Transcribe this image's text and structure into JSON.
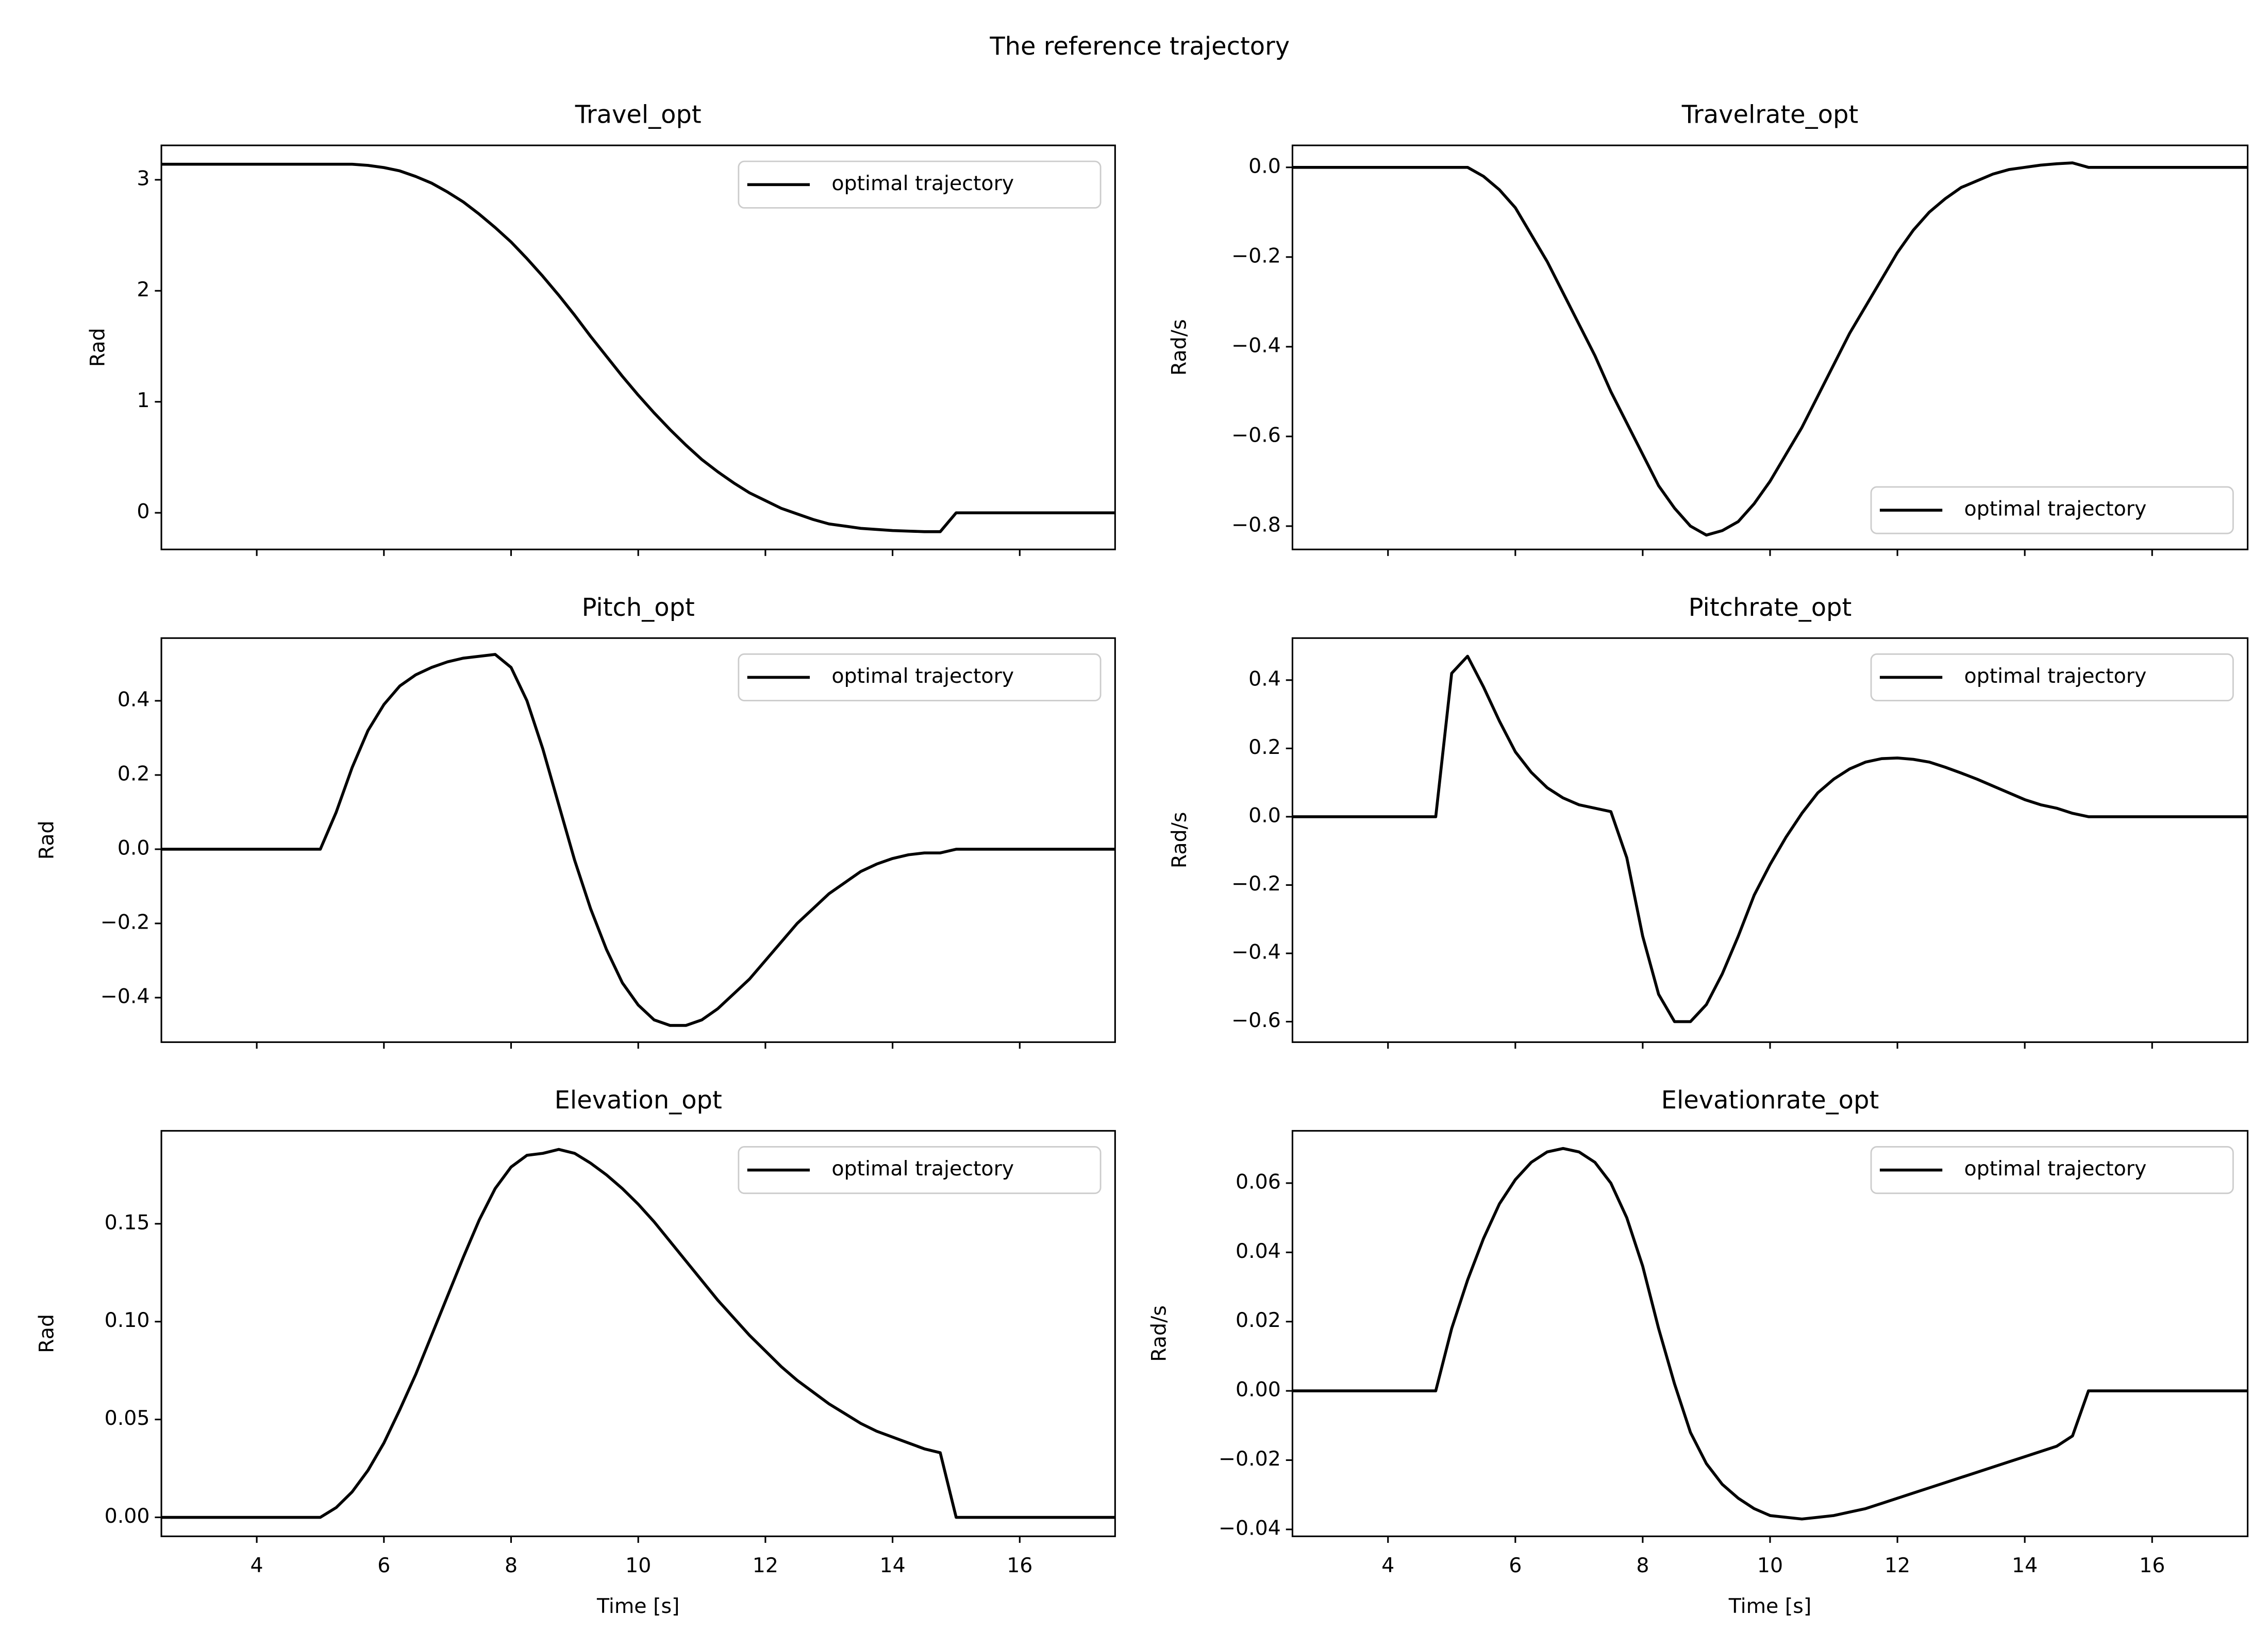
{
  "title": "The reference trajectory",
  "chart_data": [
    {
      "type": "line",
      "title": "Travel_opt",
      "ylabel": "Rad",
      "x": [
        2.5,
        4.5,
        4.75,
        5,
        5.25,
        5.5,
        5.75,
        6,
        6.25,
        6.5,
        6.75,
        7,
        7.25,
        7.5,
        7.75,
        8,
        8.25,
        8.5,
        8.75,
        9,
        9.25,
        9.5,
        9.75,
        10,
        10.25,
        10.5,
        10.75,
        11,
        11.25,
        11.5,
        11.75,
        12,
        12.25,
        12.5,
        12.75,
        13,
        13.25,
        13.5,
        13.75,
        14,
        14.25,
        14.5,
        14.75,
        15,
        15.25,
        15.5,
        17.5
      ],
      "series": [
        {
          "name": "optimal trajectory",
          "color": "#000000",
          "values": [
            3.14,
            3.14,
            3.14,
            3.14,
            3.14,
            3.14,
            3.13,
            3.11,
            3.08,
            3.03,
            2.97,
            2.89,
            2.8,
            2.69,
            2.57,
            2.44,
            2.29,
            2.13,
            1.96,
            1.78,
            1.59,
            1.41,
            1.23,
            1.06,
            0.9,
            0.75,
            0.61,
            0.48,
            0.37,
            0.27,
            0.18,
            0.11,
            0.04,
            -0.01,
            -0.06,
            -0.1,
            -0.12,
            -0.14,
            -0.15,
            -0.16,
            -0.165,
            -0.17,
            -0.17,
            0,
            0,
            0,
            0
          ]
        }
      ],
      "xlim": [
        2.5,
        17.5
      ],
      "ylim": [
        -0.33,
        3.31
      ],
      "xticks": [
        4,
        6,
        8,
        10,
        12,
        14,
        16
      ],
      "xtick_labels": false,
      "yticks": [
        0,
        1,
        2,
        3
      ],
      "legend": "upper right"
    },
    {
      "type": "line",
      "title": "Travelrate_opt",
      "ylabel": "Rad/s",
      "x": [
        2.5,
        4.5,
        4.75,
        5,
        5.25,
        5.5,
        5.75,
        6,
        6.25,
        6.5,
        6.75,
        7,
        7.25,
        7.5,
        7.75,
        8,
        8.25,
        8.5,
        8.75,
        9,
        9.25,
        9.5,
        9.75,
        10,
        10.25,
        10.5,
        10.75,
        11,
        11.25,
        11.5,
        11.75,
        12,
        12.25,
        12.5,
        12.75,
        13,
        13.25,
        13.5,
        13.75,
        14,
        14.25,
        14.5,
        14.75,
        15,
        15.25,
        15.5,
        17.5
      ],
      "series": [
        {
          "name": "optimal trajectory",
          "color": "#000000",
          "values": [
            0,
            0,
            0,
            0,
            0,
            -0.02,
            -0.05,
            -0.09,
            -0.15,
            -0.21,
            -0.28,
            -0.35,
            -0.42,
            -0.5,
            -0.57,
            -0.64,
            -0.71,
            -0.76,
            -0.8,
            -0.82,
            -0.81,
            -0.79,
            -0.75,
            -0.7,
            -0.64,
            -0.58,
            -0.51,
            -0.44,
            -0.37,
            -0.31,
            -0.25,
            -0.19,
            -0.14,
            -0.1,
            -0.07,
            -0.045,
            -0.03,
            -0.015,
            -0.005,
            0,
            0.005,
            0.008,
            0.01,
            0,
            0,
            0,
            0
          ]
        }
      ],
      "xlim": [
        2.5,
        17.5
      ],
      "ylim": [
        -0.852,
        0.049
      ],
      "xticks": [
        4,
        6,
        8,
        10,
        12,
        14,
        16
      ],
      "xtick_labels": false,
      "yticks": [
        {
          "value": -0.8,
          "label": "−0.8"
        },
        {
          "value": -0.6,
          "label": "−0.6"
        },
        {
          "value": -0.4,
          "label": "−0.4"
        },
        {
          "value": -0.2,
          "label": "−0.2"
        },
        {
          "value": 0,
          "label": "0.0"
        }
      ],
      "legend": "lower right"
    },
    {
      "type": "line",
      "title": "Pitch_opt",
      "ylabel": "Rad",
      "x": [
        2.5,
        4.5,
        4.75,
        5,
        5.25,
        5.5,
        5.75,
        6,
        6.25,
        6.5,
        6.75,
        7,
        7.25,
        7.5,
        7.75,
        8,
        8.25,
        8.5,
        8.75,
        9,
        9.25,
        9.5,
        9.75,
        10,
        10.25,
        10.5,
        10.75,
        11,
        11.25,
        11.5,
        11.75,
        12,
        12.25,
        12.5,
        12.75,
        13,
        13.25,
        13.5,
        13.75,
        14,
        14.25,
        14.5,
        14.75,
        15,
        15.25,
        15.5,
        17.5
      ],
      "series": [
        {
          "name": "optimal trajectory",
          "color": "#000000",
          "values": [
            0,
            0,
            0,
            0,
            0.1,
            0.22,
            0.32,
            0.39,
            0.44,
            0.47,
            0.49,
            0.505,
            0.515,
            0.52,
            0.525,
            0.49,
            0.4,
            0.27,
            0.12,
            -0.03,
            -0.16,
            -0.27,
            -0.36,
            -0.42,
            -0.46,
            -0.475,
            -0.475,
            -0.46,
            -0.43,
            -0.39,
            -0.35,
            -0.3,
            -0.25,
            -0.2,
            -0.16,
            -0.12,
            -0.09,
            -0.06,
            -0.04,
            -0.025,
            -0.015,
            -0.01,
            -0.01,
            0,
            0,
            0,
            0
          ]
        }
      ],
      "xlim": [
        2.5,
        17.5
      ],
      "ylim": [
        -0.52,
        0.569
      ],
      "xticks": [
        4,
        6,
        8,
        10,
        12,
        14,
        16
      ],
      "xtick_labels": false,
      "yticks": [
        {
          "value": -0.4,
          "label": "−0.4"
        },
        {
          "value": -0.2,
          "label": "−0.2"
        },
        {
          "value": 0,
          "label": "0.0"
        },
        {
          "value": 0.2,
          "label": "0.2"
        },
        {
          "value": 0.4,
          "label": "0.4"
        }
      ],
      "legend": "upper right"
    },
    {
      "type": "line",
      "title": "Pitchrate_opt",
      "ylabel": "Rad/s",
      "x": [
        2.5,
        4.5,
        4.75,
        5,
        5.25,
        5.5,
        5.75,
        6,
        6.25,
        6.5,
        6.75,
        7,
        7.25,
        7.5,
        7.75,
        8,
        8.25,
        8.5,
        8.75,
        9,
        9.25,
        9.5,
        9.75,
        10,
        10.25,
        10.5,
        10.75,
        11,
        11.25,
        11.5,
        11.75,
        12,
        12.25,
        12.5,
        12.75,
        13,
        13.25,
        13.5,
        13.75,
        14,
        14.25,
        14.5,
        14.75,
        15,
        15.25,
        15.5,
        17.5
      ],
      "series": [
        {
          "name": "optimal trajectory",
          "color": "#000000",
          "values": [
            0,
            0,
            0,
            0.42,
            0.47,
            0.38,
            0.28,
            0.19,
            0.13,
            0.085,
            0.055,
            0.035,
            0.025,
            0.015,
            -0.12,
            -0.35,
            -0.52,
            -0.6,
            -0.6,
            -0.55,
            -0.46,
            -0.35,
            -0.23,
            -0.14,
            -0.06,
            0.01,
            0.07,
            0.11,
            0.14,
            0.16,
            0.17,
            0.172,
            0.168,
            0.16,
            0.145,
            0.128,
            0.11,
            0.09,
            0.07,
            0.05,
            0.035,
            0.025,
            0.01,
            0,
            0,
            0,
            0
          ]
        }
      ],
      "xlim": [
        2.5,
        17.5
      ],
      "ylim": [
        -0.66,
        0.523
      ],
      "xticks": [
        4,
        6,
        8,
        10,
        12,
        14,
        16
      ],
      "xtick_labels": false,
      "yticks": [
        {
          "value": -0.6,
          "label": "−0.6"
        },
        {
          "value": -0.4,
          "label": "−0.4"
        },
        {
          "value": -0.2,
          "label": "−0.2"
        },
        {
          "value": 0,
          "label": "0.0"
        },
        {
          "value": 0.2,
          "label": "0.2"
        },
        {
          "value": 0.4,
          "label": "0.4"
        }
      ],
      "legend": "upper right"
    },
    {
      "type": "line",
      "title": "Elevation_opt",
      "xlabel": "Time [s]",
      "ylabel": "Rad",
      "x": [
        2.5,
        4.5,
        4.75,
        5,
        5.25,
        5.5,
        5.75,
        6,
        6.25,
        6.5,
        6.75,
        7,
        7.25,
        7.5,
        7.75,
        8,
        8.25,
        8.5,
        8.75,
        9,
        9.25,
        9.5,
        9.75,
        10,
        10.25,
        10.5,
        10.75,
        11,
        11.25,
        11.5,
        11.75,
        12,
        12.25,
        12.5,
        12.75,
        13,
        13.25,
        13.5,
        13.75,
        14,
        14.25,
        14.5,
        14.75,
        15,
        15.25,
        15.5,
        17.5
      ],
      "series": [
        {
          "name": "optimal trajectory",
          "color": "#000000",
          "values": [
            0,
            0,
            0,
            0,
            0.005,
            0.013,
            0.024,
            0.038,
            0.055,
            0.073,
            0.093,
            0.113,
            0.133,
            0.152,
            0.168,
            0.179,
            0.185,
            0.186,
            0.188,
            0.186,
            0.181,
            0.175,
            0.168,
            0.16,
            0.151,
            0.141,
            0.131,
            0.121,
            0.111,
            0.102,
            0.093,
            0.085,
            0.077,
            0.07,
            0.064,
            0.058,
            0.053,
            0.048,
            0.044,
            0.041,
            0.038,
            0.035,
            0.033,
            0,
            0,
            0,
            0
          ]
        }
      ],
      "xlim": [
        2.5,
        17.5
      ],
      "ylim": [
        -0.0097,
        0.1975
      ],
      "xticks": [
        4,
        6,
        8,
        10,
        12,
        14,
        16
      ],
      "xtick_labels": true,
      "yticks": [
        {
          "value": 0,
          "label": "0.00"
        },
        {
          "value": 0.05,
          "label": "0.05"
        },
        {
          "value": 0.1,
          "label": "0.10"
        },
        {
          "value": 0.15,
          "label": "0.15"
        }
      ],
      "legend": "upper right"
    },
    {
      "type": "line",
      "title": "Elevationrate_opt",
      "xlabel": "Time [s]",
      "ylabel": "Rad/s",
      "x": [
        2.5,
        4.5,
        4.75,
        5,
        5.25,
        5.5,
        5.75,
        6,
        6.25,
        6.5,
        6.75,
        7,
        7.25,
        7.5,
        7.75,
        8,
        8.25,
        8.5,
        8.75,
        9,
        9.25,
        9.5,
        9.75,
        10,
        10.25,
        10.5,
        10.75,
        11,
        11.25,
        11.5,
        11.75,
        12,
        12.25,
        12.5,
        12.75,
        13,
        13.25,
        13.5,
        13.75,
        14,
        14.25,
        14.5,
        14.75,
        15,
        15.25,
        15.5,
        17.5
      ],
      "series": [
        {
          "name": "optimal trajectory",
          "color": "#000000",
          "values": [
            0,
            0,
            0,
            0.018,
            0.032,
            0.044,
            0.054,
            0.061,
            0.066,
            0.069,
            0.07,
            0.069,
            0.066,
            0.06,
            0.05,
            0.036,
            0.018,
            0.002,
            -0.012,
            -0.021,
            -0.027,
            -0.031,
            -0.034,
            -0.036,
            -0.0365,
            -0.037,
            -0.0365,
            -0.036,
            -0.035,
            -0.034,
            -0.0325,
            -0.031,
            -0.0295,
            -0.028,
            -0.0265,
            -0.025,
            -0.0235,
            -0.022,
            -0.0205,
            -0.019,
            -0.0175,
            -0.016,
            -0.013,
            0,
            0,
            0,
            0
          ]
        }
      ],
      "xlim": [
        2.5,
        17.5
      ],
      "ylim": [
        -0.042,
        0.0751
      ],
      "xticks": [
        4,
        6,
        8,
        10,
        12,
        14,
        16
      ],
      "xtick_labels": true,
      "yticks": [
        {
          "value": -0.04,
          "label": "−0.04"
        },
        {
          "value": -0.02,
          "label": "−0.02"
        },
        {
          "value": 0,
          "label": "0.00"
        },
        {
          "value": 0.02,
          "label": "0.02"
        },
        {
          "value": 0.04,
          "label": "0.04"
        },
        {
          "value": 0.06,
          "label": "0.06"
        }
      ],
      "legend": "upper right"
    }
  ]
}
